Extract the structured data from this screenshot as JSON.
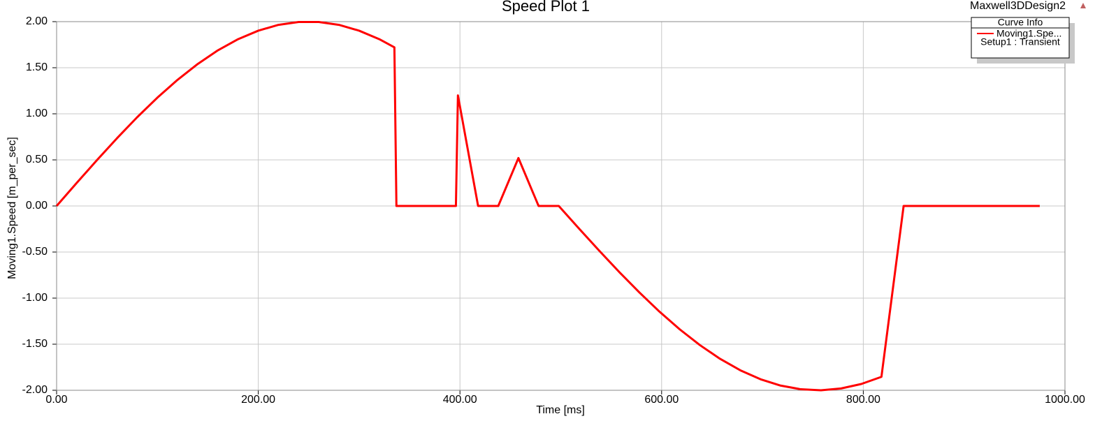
{
  "chart_data": {
    "type": "line",
    "title": "Speed Plot 1",
    "design_name": "Maxwell3DDesign2",
    "x_label": "Time [ms]",
    "y_label": "Moving1.Speed [m_per_sec]",
    "legend_title": "Curve Info",
    "legend_note": "Setup1 : Transient",
    "legend_position": "top-right",
    "grid": true,
    "xlim": [
      0,
      1000
    ],
    "ylim": [
      -2,
      2
    ],
    "xticks": [
      {
        "value": 0,
        "label": "0.00"
      },
      {
        "value": 200,
        "label": "200.00"
      },
      {
        "value": 400,
        "label": "400.00"
      },
      {
        "value": 600,
        "label": "600.00"
      },
      {
        "value": 800,
        "label": "800.00"
      },
      {
        "value": 1000,
        "label": "1000.00"
      }
    ],
    "yticks": [
      {
        "value": -2,
        "label": "-2.00"
      },
      {
        "value": -1.5,
        "label": "-1.50"
      },
      {
        "value": -1,
        "label": "-1.00"
      },
      {
        "value": -0.5,
        "label": "-0.50"
      },
      {
        "value": 0,
        "label": "0.00"
      },
      {
        "value": 0.5,
        "label": "0.50"
      },
      {
        "value": 1,
        "label": "1.00"
      },
      {
        "value": 1.5,
        "label": "1.50"
      },
      {
        "value": 2,
        "label": "2.00"
      }
    ],
    "x": [
      0,
      20,
      40,
      60,
      80,
      100,
      120,
      140,
      160,
      180,
      200,
      220,
      240,
      260,
      280,
      300,
      320,
      335,
      337,
      396,
      398,
      418,
      438,
      458,
      478,
      498,
      518,
      538,
      558,
      578,
      598,
      618,
      638,
      658,
      678,
      698,
      718,
      738,
      758,
      778,
      798,
      818,
      840,
      975
    ],
    "series": [
      {
        "name": "Moving1.Spe...",
        "color": "#ff0000",
        "values": [
          0,
          0.251,
          0.497,
          0.736,
          0.964,
          1.176,
          1.369,
          1.541,
          1.689,
          1.81,
          1.902,
          1.965,
          1.996,
          1.996,
          1.965,
          1.902,
          1.81,
          1.721,
          0,
          0,
          1.2,
          0,
          0,
          0.52,
          0,
          0,
          -0.244,
          -0.484,
          -0.717,
          -0.939,
          -1.148,
          -1.339,
          -1.51,
          -1.659,
          -1.783,
          -1.88,
          -1.949,
          -1.989,
          -2.0,
          -1.98,
          -1.932,
          -1.854,
          0,
          0
        ]
      }
    ]
  }
}
